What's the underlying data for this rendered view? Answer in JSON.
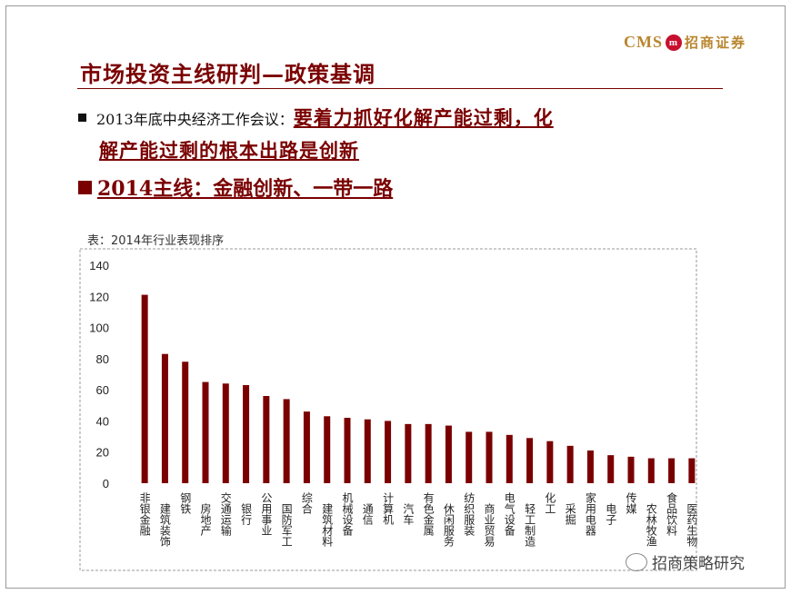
{
  "logo": {
    "brand": "CMS",
    "badge": "m",
    "name": "招商证券"
  },
  "title": "市场投资主线研判—政策基调",
  "bullet1": {
    "lead": "2013年底中央经济工作会议：",
    "highlight_1": "要着力抓好化解产能过剩，化",
    "highlight_2": "解产能过剩的根本出路是创新"
  },
  "bullet2": {
    "text": "2014主线：金融创新、一带一路"
  },
  "caption": "表：2014年行业表现排序",
  "watermark": "招商策略研究",
  "colors": {
    "bar": "#7a0000",
    "title": "#7a0000"
  },
  "chart_data": {
    "type": "bar",
    "title": "表：2014年行业表现排序",
    "xlabel": "",
    "ylabel": "",
    "ylim": [
      0,
      140
    ],
    "yticks": [
      0,
      20,
      40,
      60,
      80,
      100,
      120,
      140
    ],
    "categories": [
      "非银金融",
      "建筑装饰",
      "钢铁",
      "房地产",
      "交通运输",
      "银行",
      "公用事业",
      "国防军工",
      "综合",
      "建筑材料",
      "机械设备",
      "通信",
      "计算机",
      "汽车",
      "有色金属",
      "休闲服务",
      "纺织服装",
      "商业贸易",
      "电气设备",
      "轻工制造",
      "化工",
      "采掘",
      "家用电器",
      "电子",
      "传媒",
      "农林牧渔",
      "食品饮料",
      "医药生物"
    ],
    "values": [
      121,
      83,
      78,
      65,
      64,
      63,
      56,
      54,
      46,
      43,
      42,
      41,
      40,
      38,
      38,
      37,
      33,
      33,
      31,
      29,
      27,
      24,
      21,
      18,
      17,
      16,
      16,
      16
    ]
  }
}
